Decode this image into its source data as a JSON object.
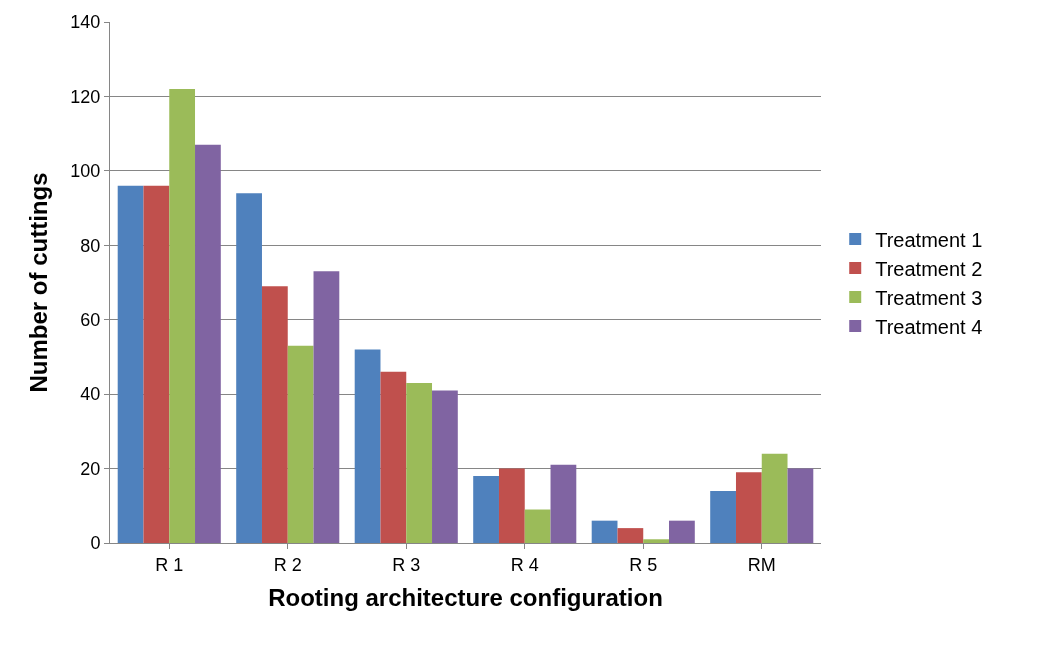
{
  "chart_data": {
    "type": "bar",
    "xlabel": "Rooting architecture configuration",
    "ylabel": "Number of cuttings",
    "categories": [
      "R 1",
      "R 2",
      "R 3",
      "R 4",
      "R 5",
      "RM"
    ],
    "series": [
      {
        "name": "Treatment 1",
        "color": "#4f81bd",
        "values": [
          96,
          94,
          52,
          18,
          6,
          14
        ]
      },
      {
        "name": "Treatment 2",
        "color": "#c0504d",
        "values": [
          96,
          69,
          46,
          20,
          4,
          19
        ]
      },
      {
        "name": "Treatment 3",
        "color": "#9bbb59",
        "values": [
          122,
          53,
          43,
          9,
          1,
          24
        ]
      },
      {
        "name": "Treatment 4",
        "color": "#8064a2",
        "values": [
          107,
          73,
          41,
          21,
          6,
          20
        ]
      }
    ],
    "ylim": [
      0,
      140
    ],
    "yticks": [
      0,
      20,
      40,
      60,
      80,
      100,
      120,
      140
    ],
    "grid": "y",
    "legend": "right"
  }
}
